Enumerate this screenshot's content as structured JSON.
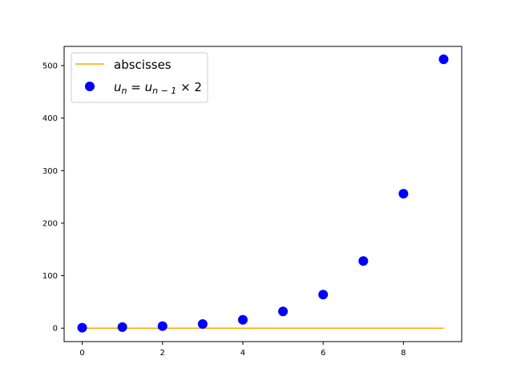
{
  "chart_data": {
    "type": "scatter",
    "title": "",
    "xlabel": "",
    "ylabel": "",
    "xlim": [
      -0.45,
      9.45
    ],
    "ylim": [
      -25.55,
      536.55
    ],
    "x_ticks": [
      0,
      2,
      4,
      6,
      8
    ],
    "y_ticks": [
      0,
      100,
      200,
      300,
      400,
      500
    ],
    "grid": false,
    "legend_position": "top-left",
    "series": [
      {
        "name": "abscisses",
        "kind": "line",
        "color": "#ffa500",
        "x": [
          0,
          9
        ],
        "y": [
          0,
          0
        ]
      },
      {
        "name": "u_n = u_{n-1} × 2",
        "kind": "scatter",
        "color": "#0000ff",
        "x": [
          0,
          1,
          2,
          3,
          4,
          5,
          6,
          7,
          8,
          9
        ],
        "y": [
          1,
          2,
          4,
          8,
          16,
          32,
          64,
          128,
          256,
          512
        ]
      }
    ],
    "legend": {
      "line_label": "abscisses",
      "scatter_label": {
        "u": "u",
        "n": "n",
        "eq": " = ",
        "n_minus_1": "n − 1",
        "times_two": " × 2"
      }
    }
  }
}
